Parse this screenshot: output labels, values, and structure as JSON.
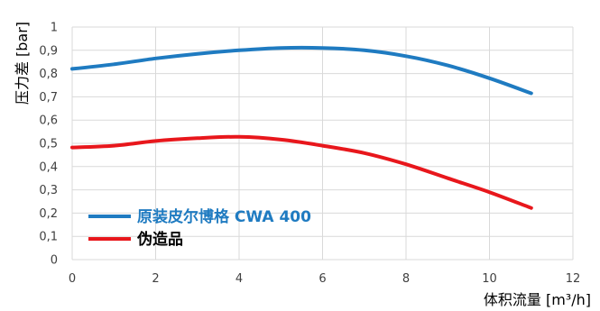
{
  "chart_data": {
    "type": "line",
    "xlabel": "体积流量 [m³/h]",
    "ylabel": "压力差 [bar]",
    "xlim": [
      0,
      12
    ],
    "ylim": [
      0,
      1
    ],
    "x_ticks": [
      "0",
      "2",
      "4",
      "6",
      "8",
      "10",
      "12"
    ],
    "y_ticks": [
      "0",
      "0,1",
      "0,2",
      "0,3",
      "0,4",
      "0,5",
      "0,6",
      "0,7",
      "0,8",
      "0,9",
      "1"
    ],
    "grid": true,
    "legend_position": "bottom-left",
    "series": [
      {
        "name": "原装皮尔博格 CWA 400",
        "color": "#1f7bc1",
        "x": [
          0,
          1,
          2,
          3,
          4,
          5,
          6,
          7,
          8,
          9,
          10,
          11
        ],
        "y": [
          0.82,
          0.84,
          0.865,
          0.885,
          0.9,
          0.91,
          0.91,
          0.9,
          0.875,
          0.835,
          0.78,
          0.715
        ]
      },
      {
        "name": "伪造品",
        "color": "#e8171c",
        "x": [
          0,
          1,
          2,
          3,
          4,
          5,
          6,
          7,
          8,
          9,
          10,
          11
        ],
        "y": [
          0.482,
          0.49,
          0.51,
          0.522,
          0.528,
          0.516,
          0.49,
          0.458,
          0.41,
          0.35,
          0.29,
          0.222
        ]
      }
    ]
  }
}
